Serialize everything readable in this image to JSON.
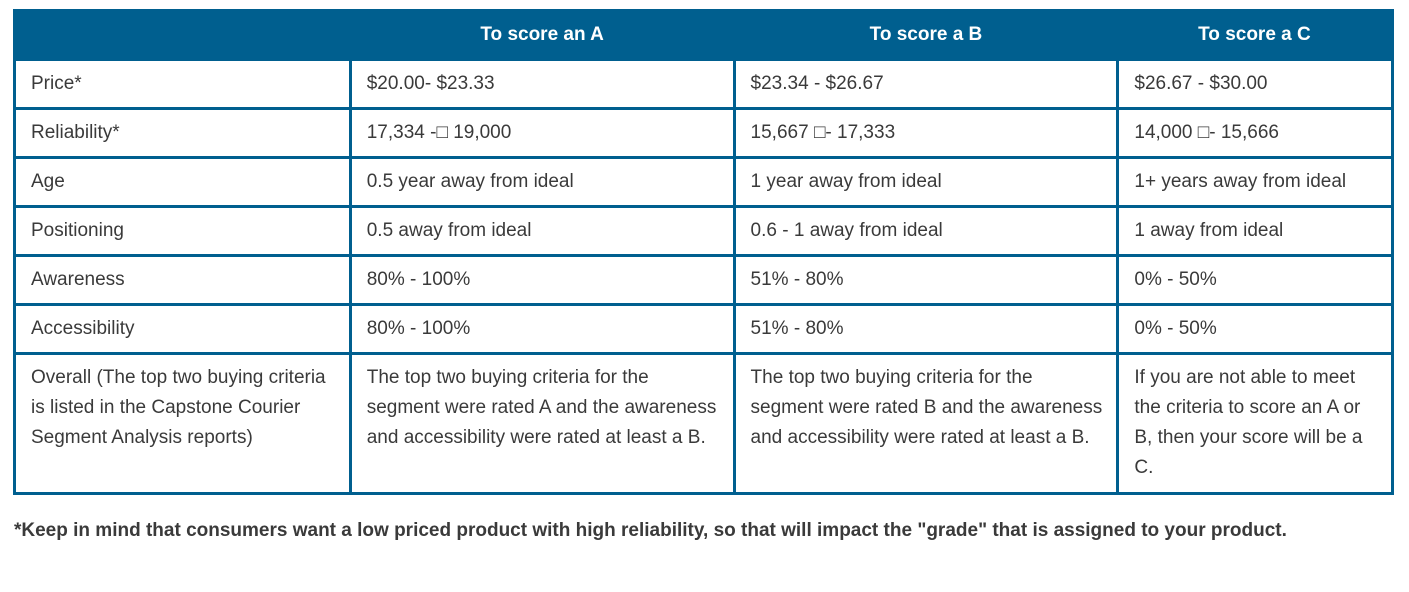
{
  "table": {
    "headers": [
      "",
      "To score an A",
      "To score a B",
      "To score a C"
    ],
    "rows": [
      {
        "criterion": "Price*",
        "a": "$20.00- $23.33",
        "b": "$23.34 - $26.67",
        "c": "$26.67 - $30.00"
      },
      {
        "criterion": "Reliability*",
        "a": "17,334 -□ 19,000",
        "b": "15,667 □- 17,333",
        "c": "14,000 □- 15,666"
      },
      {
        "criterion": "Age",
        "a": "0.5 year away from ideal",
        "b": "1 year away from ideal",
        "c": "1+  years away from ideal"
      },
      {
        "criterion": "Positioning",
        "a": "0.5 away from ideal",
        "b": "0.6 - 1 away from ideal",
        "c": "1 away from ideal"
      },
      {
        "criterion": "Awareness",
        "a": "80% - 100%",
        "b": "51% - 80%",
        "c": "0% - 50%"
      },
      {
        "criterion": "Accessibility",
        "a": "80% - 100%",
        "b": "51% - 80%",
        "c": "0% - 50%"
      },
      {
        "criterion": "Overall (The top two buying criteria is listed in the Capstone Courier Segment Analysis reports)",
        "a": "The top two buying criteria for the segment were rated A and the awareness and accessibility were rated at least a B.",
        "b": "The top two buying criteria for the segment were rated B and the awareness and accessibility were rated at least a B.",
        "c": "If you are not able to meet the criteria to score an A or B, then your score will be a C."
      }
    ]
  },
  "footnote": "*Keep in mind that consumers want a low priced product with high reliability, so that will impact the \"grade\" that is assigned to your product.",
  "colors": {
    "header_bg": "#005f8f",
    "border": "#005f8f",
    "text": "#3a3a3a"
  }
}
